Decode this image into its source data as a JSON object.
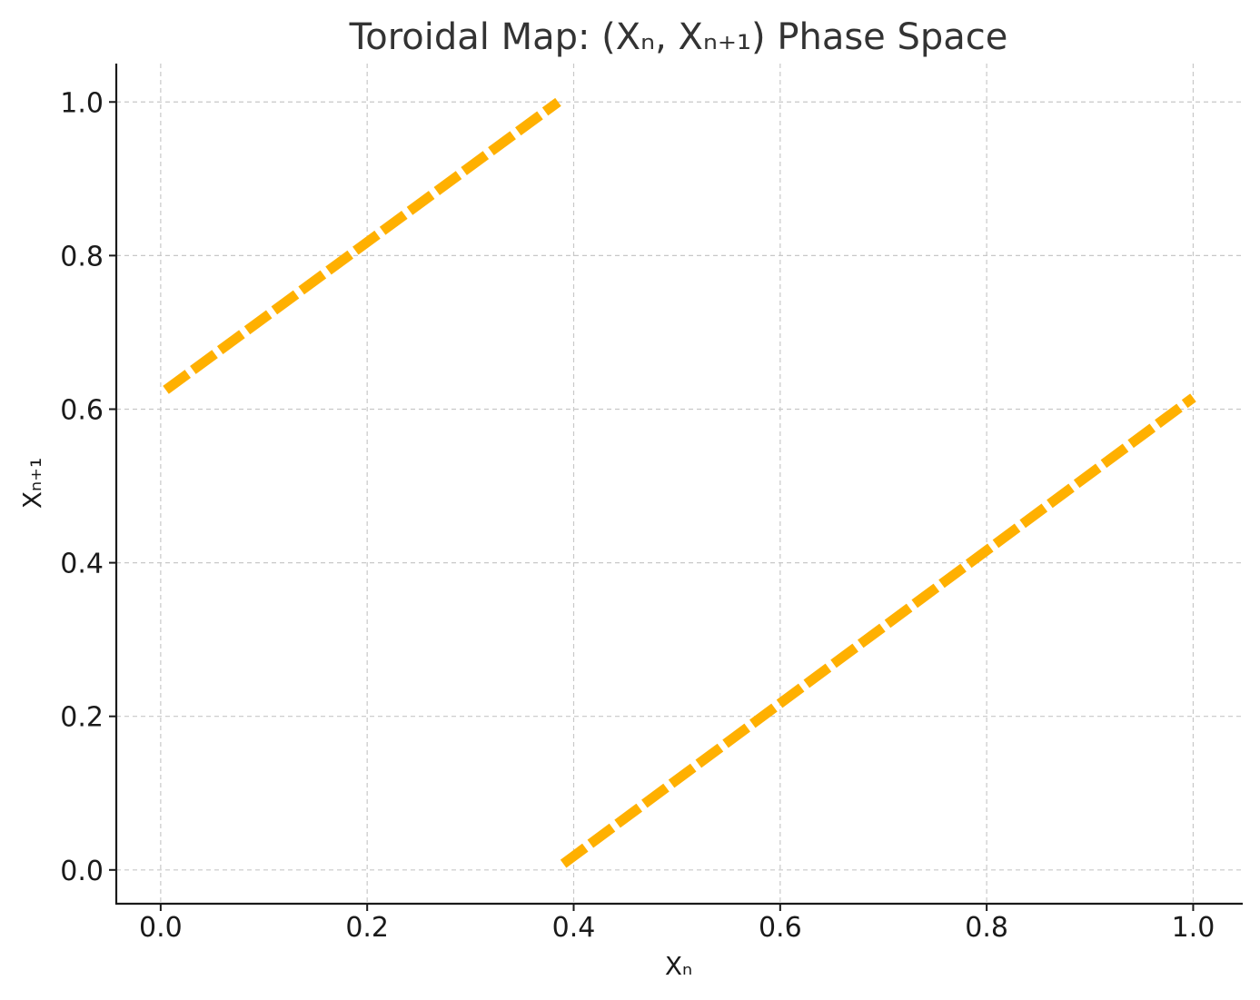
{
  "chart_data": {
    "type": "line",
    "title": "Toroidal Map: (Xₙ, Xₙ₊₁) Phase Space",
    "xlabel": "Xₙ",
    "ylabel": "Xₙ₊₁",
    "xlim": [
      -0.043,
      1.048
    ],
    "ylim": [
      -0.044,
      1.05
    ],
    "xticks": [
      0.0,
      0.2,
      0.4,
      0.6,
      0.8,
      1.0
    ],
    "xtick_labels": [
      "0.0",
      "0.2",
      "0.4",
      "0.6",
      "0.8",
      "1.0"
    ],
    "yticks": [
      0.0,
      0.2,
      0.4,
      0.6,
      0.8,
      1.0
    ],
    "ytick_labels": [
      "0.0",
      "0.2",
      "0.4",
      "0.6",
      "0.8",
      "1.0"
    ],
    "grid": true,
    "series": [
      {
        "color": "#ffb000",
        "style": "dashed",
        "segments": [
          {
            "x": [
              0.005,
              0.385
            ],
            "y": [
              0.625,
              1.0
            ]
          },
          {
            "x": [
              0.39,
              1.0
            ],
            "y": [
              0.008,
              0.615
            ]
          }
        ]
      }
    ]
  }
}
